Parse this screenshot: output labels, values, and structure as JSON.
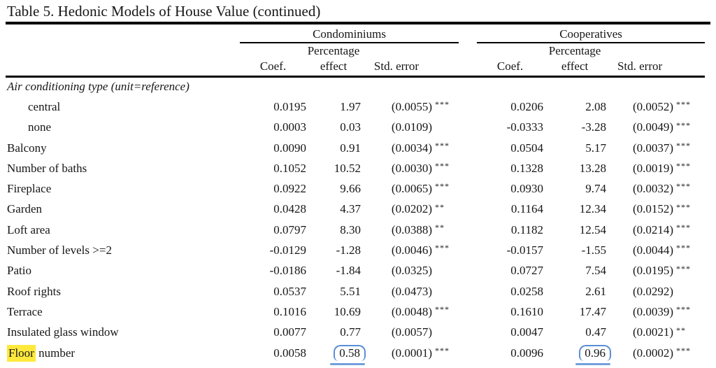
{
  "title": "Table 5. Hedonic Models of House Value (continued)",
  "table": {
    "group_headers": [
      "Condominiums",
      "Cooperatives"
    ],
    "column_headers": {
      "coef": "Coef.",
      "percentage": "Percentage",
      "effect": "effect",
      "stderr": "Std. error"
    },
    "rows": [
      {
        "label": "Air conditioning type (unit=reference)",
        "italic": true,
        "condo": null,
        "coop": null
      },
      {
        "label": "central",
        "indent": true,
        "condo": {
          "coef": "0.0195",
          "effect": "1.97",
          "se": "(0.0055)",
          "sig": "***"
        },
        "coop": {
          "coef": "0.0206",
          "effect": "2.08",
          "se": "(0.0052)",
          "sig": "***"
        }
      },
      {
        "label": "none",
        "indent": true,
        "condo": {
          "coef": "0.0003",
          "effect": "0.03",
          "se": "(0.0109)",
          "sig": ""
        },
        "coop": {
          "coef": "-0.0333",
          "effect": "-3.28",
          "se": "(0.0049)",
          "sig": "***"
        }
      },
      {
        "label": "Balcony",
        "condo": {
          "coef": "0.0090",
          "effect": "0.91",
          "se": "(0.0034)",
          "sig": "***"
        },
        "coop": {
          "coef": "0.0504",
          "effect": "5.17",
          "se": "(0.0037)",
          "sig": "***"
        }
      },
      {
        "label": "Number of baths",
        "condo": {
          "coef": "0.1052",
          "effect": "10.52",
          "se": "(0.0030)",
          "sig": "***"
        },
        "coop": {
          "coef": "0.1328",
          "effect": "13.28",
          "se": "(0.0019)",
          "sig": "***"
        }
      },
      {
        "label": "Fireplace",
        "condo": {
          "coef": "0.0922",
          "effect": "9.66",
          "se": "(0.0065)",
          "sig": "***"
        },
        "coop": {
          "coef": "0.0930",
          "effect": "9.74",
          "se": "(0.0032)",
          "sig": "***"
        }
      },
      {
        "label": "Garden",
        "condo": {
          "coef": "0.0428",
          "effect": "4.37",
          "se": "(0.0202)",
          "sig": "**"
        },
        "coop": {
          "coef": "0.1164",
          "effect": "12.34",
          "se": "(0.0152)",
          "sig": "***"
        }
      },
      {
        "label": "Loft area",
        "condo": {
          "coef": "0.0797",
          "effect": "8.30",
          "se": "(0.0388)",
          "sig": "**"
        },
        "coop": {
          "coef": "0.1182",
          "effect": "12.54",
          "se": "(0.0214)",
          "sig": "***"
        }
      },
      {
        "label": "Number of levels >=2",
        "condo": {
          "coef": "-0.0129",
          "effect": "-1.28",
          "se": "(0.0046)",
          "sig": "***"
        },
        "coop": {
          "coef": "-0.0157",
          "effect": "-1.55",
          "se": "(0.0044)",
          "sig": "***"
        }
      },
      {
        "label": "Patio",
        "condo": {
          "coef": "-0.0186",
          "effect": "-1.84",
          "se": "(0.0325)",
          "sig": ""
        },
        "coop": {
          "coef": "0.0727",
          "effect": "7.54",
          "se": "(0.0195)",
          "sig": "***"
        }
      },
      {
        "label": "Roof rights",
        "condo": {
          "coef": "0.0537",
          "effect": "5.51",
          "se": "(0.0473)",
          "sig": ""
        },
        "coop": {
          "coef": "0.0258",
          "effect": "2.61",
          "se": "(0.0292)",
          "sig": ""
        }
      },
      {
        "label": "Terrace",
        "condo": {
          "coef": "0.1016",
          "effect": "10.69",
          "se": "(0.0048)",
          "sig": "***"
        },
        "coop": {
          "coef": "0.1610",
          "effect": "17.47",
          "se": "(0.0039)",
          "sig": "***"
        }
      },
      {
        "label": "Insulated glass window",
        "condo": {
          "coef": "0.0077",
          "effect": "0.77",
          "se": "(0.0057)",
          "sig": ""
        },
        "coop": {
          "coef": "0.0047",
          "effect": "0.47",
          "se": "(0.0021)",
          "sig": "**"
        }
      },
      {
        "label_highlight": "Floor",
        "label_rest": " number",
        "condo": {
          "coef": "0.0058",
          "effect": "0.58",
          "effect_circled": true,
          "se": "(0.0001)",
          "sig": "***"
        },
        "coop": {
          "coef": "0.0096",
          "effect": "0.96",
          "effect_circled": true,
          "se": "(0.0002)",
          "sig": "***"
        }
      }
    ]
  },
  "annotations": {
    "highlight_color": "#ffe93d",
    "circle_color": "#5b8ed6"
  }
}
